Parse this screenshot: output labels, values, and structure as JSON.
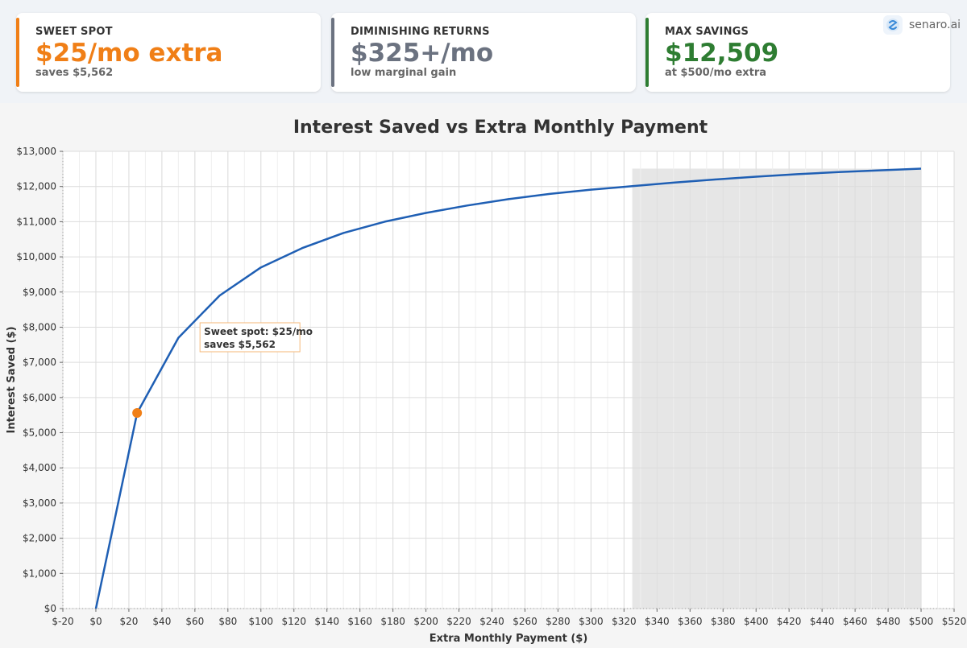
{
  "cards": [
    {
      "label": "SWEET SPOT",
      "value": "$25/mo extra",
      "sub": "saves $5,562",
      "color": "#f07f17"
    },
    {
      "label": "DIMINISHING RETURNS",
      "value": "$325+/mo",
      "sub": "low marginal gain",
      "color": "#6b7280"
    },
    {
      "label": "MAX SAVINGS",
      "value": "$12,509",
      "sub": "at $500/mo extra",
      "color": "#2e7d32"
    }
  ],
  "brand": {
    "name": "senaro.ai",
    "icon": "senaro-logo-icon"
  },
  "chart_data": {
    "type": "line",
    "title": "Interest Saved vs Extra Monthly Payment",
    "xlabel": "Extra Monthly Payment ($)",
    "ylabel": "Interest Saved ($)",
    "xlim": [
      -20,
      520
    ],
    "ylim": [
      0,
      13000
    ],
    "x_ticks": [
      -20,
      0,
      20,
      40,
      60,
      80,
      100,
      120,
      140,
      160,
      180,
      200,
      220,
      240,
      260,
      280,
      300,
      320,
      340,
      360,
      380,
      400,
      420,
      440,
      460,
      480,
      500,
      520
    ],
    "y_ticks": [
      0,
      1000,
      2000,
      3000,
      4000,
      5000,
      6000,
      7000,
      8000,
      9000,
      10000,
      11000,
      12000,
      13000
    ],
    "grid": true,
    "series": [
      {
        "color": "#1f5fb4",
        "x": [
          0,
          25,
          50,
          75,
          100,
          125,
          150,
          175,
          200,
          225,
          250,
          275,
          300,
          325,
          350,
          375,
          400,
          425,
          450,
          475,
          500
        ],
        "y": [
          0,
          5562,
          7700,
          8900,
          9700,
          10250,
          10680,
          11000,
          11250,
          11460,
          11640,
          11790,
          11910,
          12010,
          12110,
          12200,
          12280,
          12350,
          12410,
          12460,
          12509
        ]
      }
    ],
    "highlight_region": {
      "x_start": 325,
      "x_end": 500,
      "color": "#e6e6e6"
    },
    "marker": {
      "x": 25,
      "y": 5562,
      "color": "#f07f17"
    },
    "annotation": {
      "lines": [
        "Sweet spot: $25/mo",
        "saves $5,562"
      ],
      "x": 25,
      "y": 5562,
      "border": "#f5b97a"
    }
  }
}
